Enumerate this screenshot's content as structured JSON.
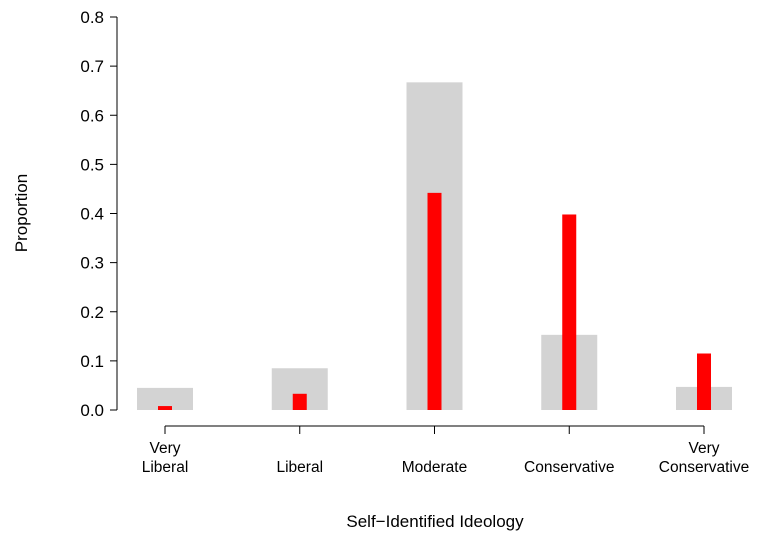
{
  "chart_data": {
    "type": "bar",
    "xlabel": "Self−Identified Ideology",
    "ylabel": "Proportion",
    "ylim": [
      0,
      0.8
    ],
    "yticks": [
      "0.0",
      "0.1",
      "0.2",
      "0.3",
      "0.4",
      "0.5",
      "0.6",
      "0.7",
      "0.8"
    ],
    "categories": [
      [
        "Very",
        "Liberal"
      ],
      [
        "Liberal"
      ],
      [
        "Moderate"
      ],
      [
        "Conservative"
      ],
      [
        "Very",
        "Conservative"
      ]
    ],
    "series": [
      {
        "values": [
          0.045,
          0.085,
          0.667,
          0.153,
          0.047
        ],
        "color": "#d3d3d3",
        "style": "wide-bar"
      },
      {
        "values": [
          0.008,
          0.033,
          0.442,
          0.398,
          0.115
        ],
        "color": "#ff0000",
        "style": "narrow-bar"
      }
    ],
    "grid": false,
    "legend": "none"
  }
}
